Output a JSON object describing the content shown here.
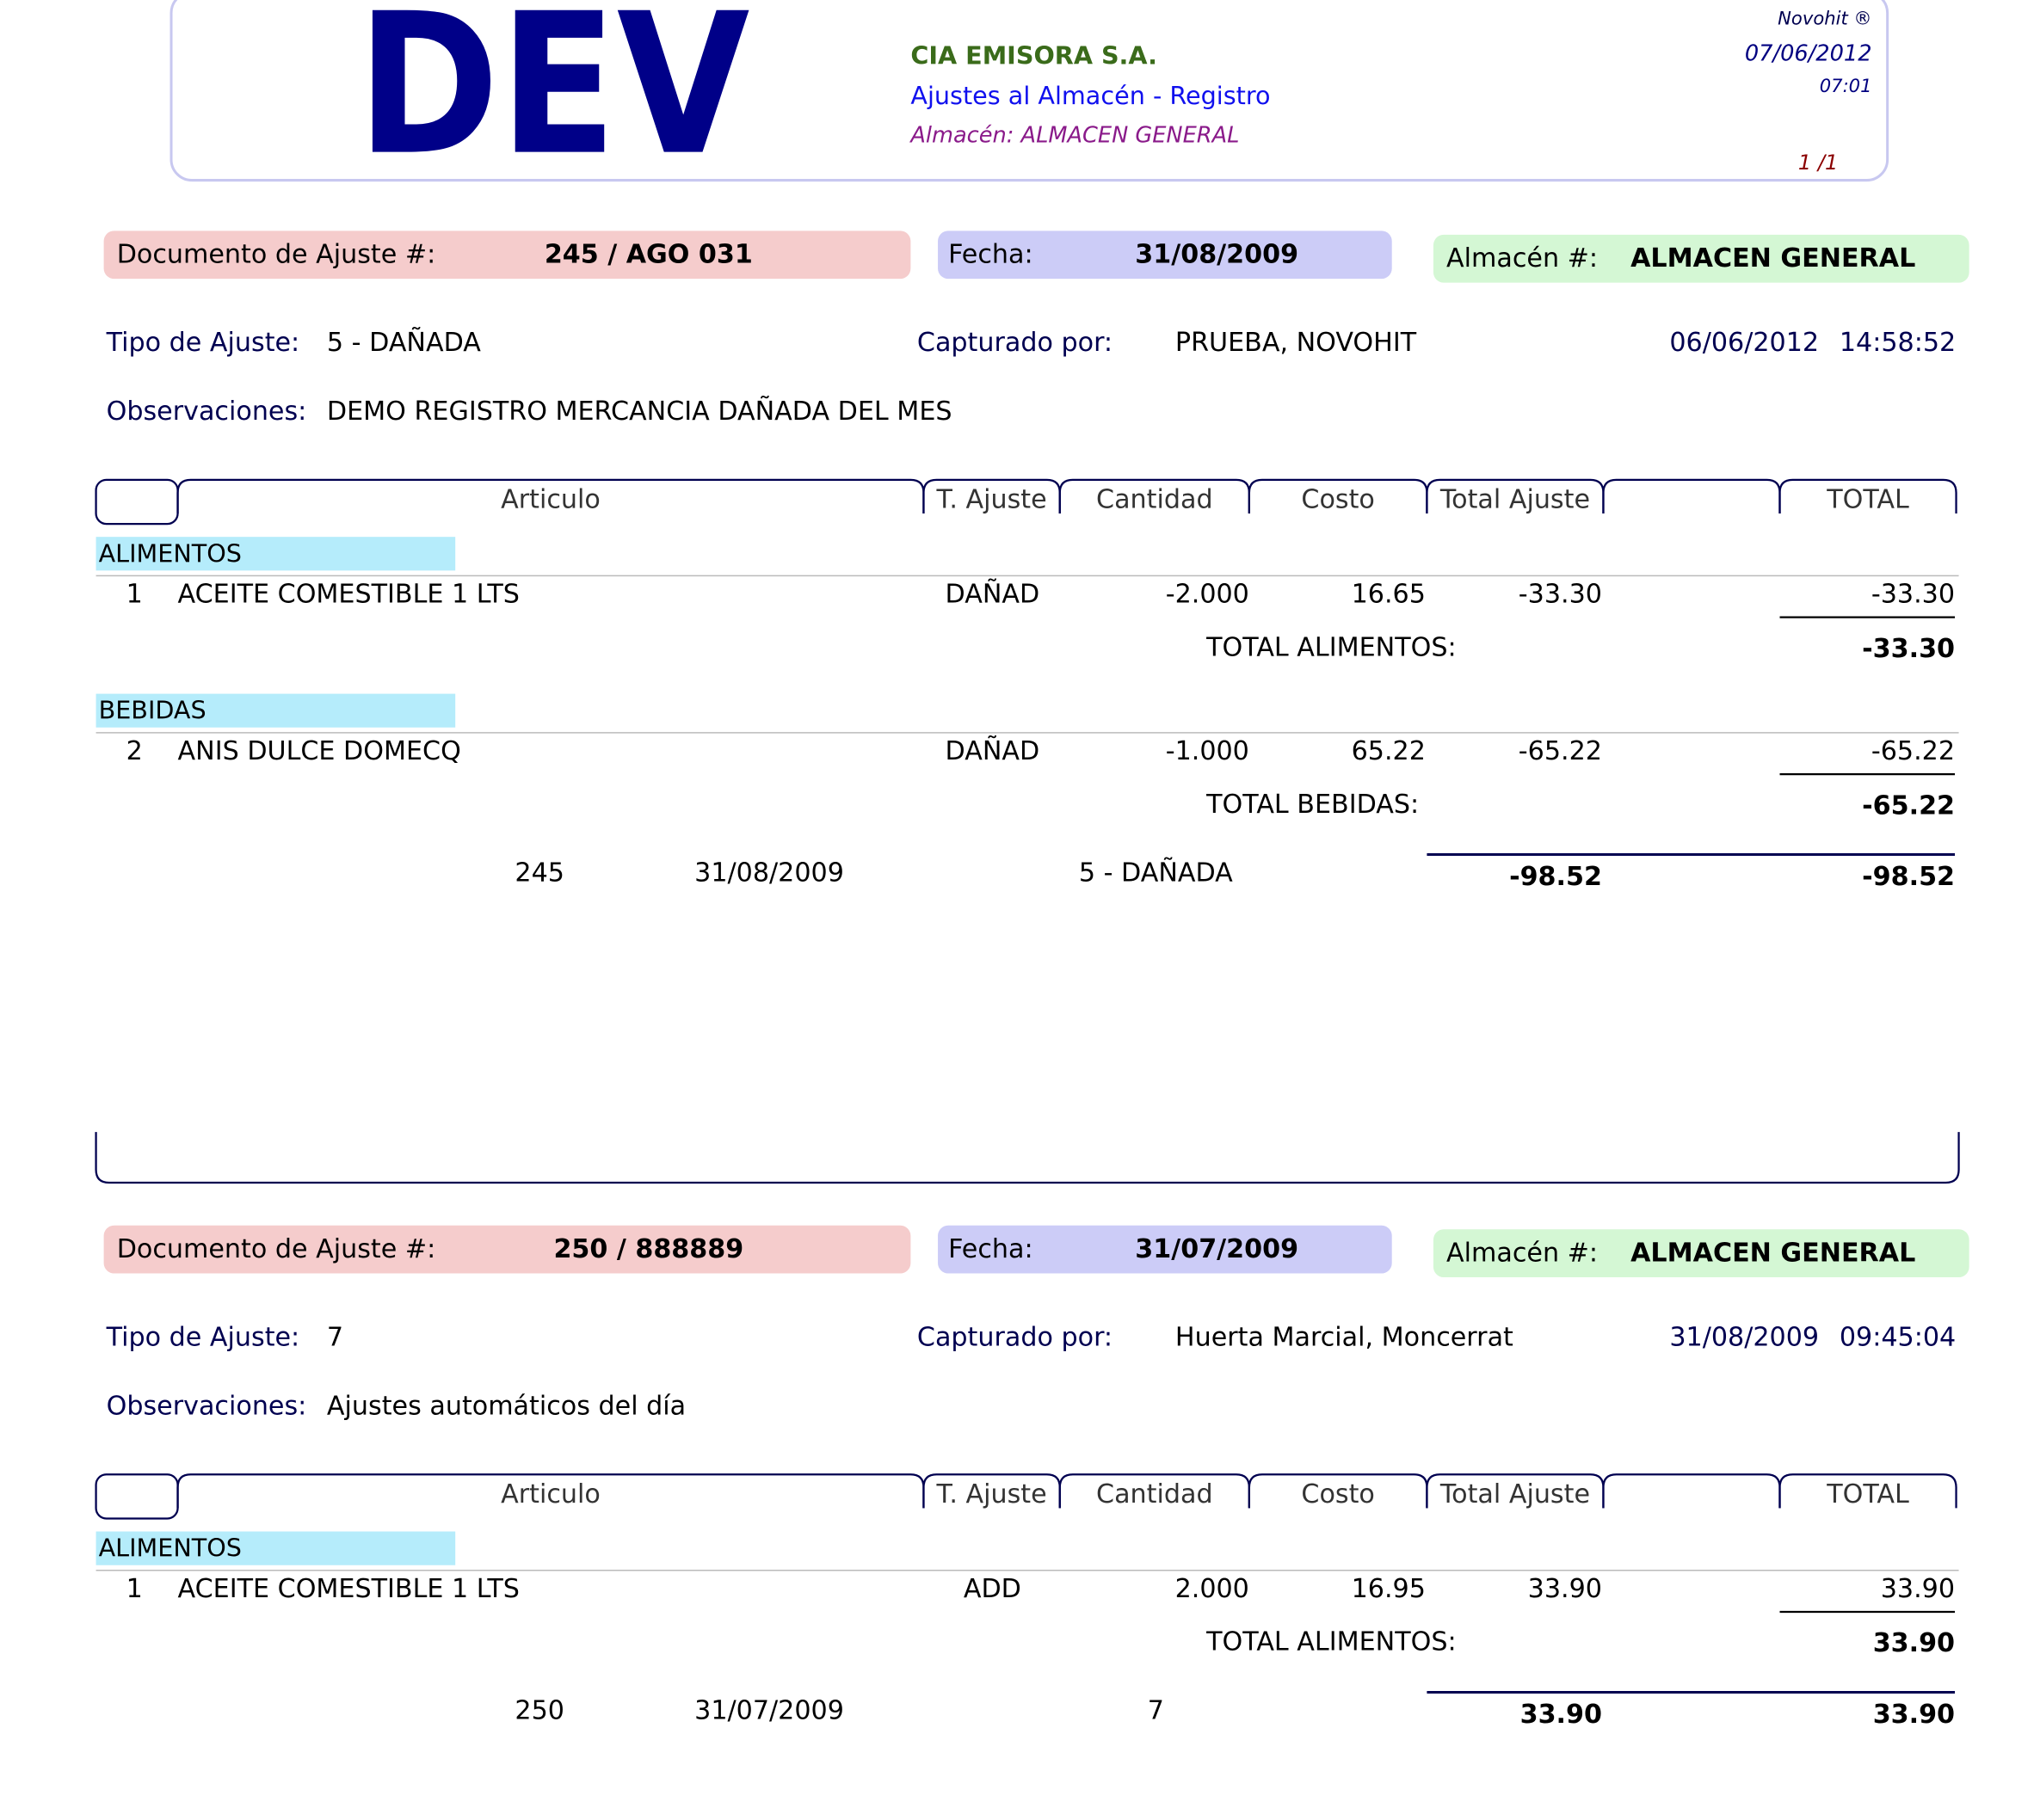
{
  "header": {
    "logo": "DEV",
    "company": "CIA EMISORA S.A.",
    "report": "Ajustes al Almacén - Registro",
    "warehouse": "Almacén: ALMACEN GENERAL",
    "software": "Novohit ®",
    "date": "07/06/2012",
    "time": "07:01",
    "page": "1 /1"
  },
  "documents": [
    {
      "doc_label": "Documento de Ajuste #:",
      "doc_number": "245 / AGO 031",
      "fecha_label": "Fecha:",
      "fecha": "31/08/2009",
      "almacen_label": "Almacén #:",
      "almacen": "ALMACEN GENERAL",
      "tipo_label": "Tipo de Ajuste:",
      "tipo": "5 - DAÑADA",
      "capturado_label": "Capturado por:",
      "capturado": "PRUEBA, NOVOHIT",
      "captura_date": "06/06/2012",
      "captura_time": "14:58:52",
      "obs_label": "Observaciones:",
      "obs": "DEMO REGISTRO MERCANCIA DAÑADA DEL MES",
      "columns": [
        "Articulo",
        "T. Ajuste",
        "Cantidad",
        "Costo",
        "Total Ajuste",
        "TOTAL"
      ],
      "groups": [
        {
          "name": "ALIMENTOS",
          "items": [
            {
              "num": "1",
              "article": "ACEITE COMESTIBLE 1 LTS",
              "type": "DAÑAD",
              "qty": "-2.000",
              "cost": "16.65",
              "total_adj": "-33.30",
              "total": "-33.30"
            }
          ],
          "total_label": "TOTAL ALIMENTOS:",
          "total": "-33.30"
        },
        {
          "name": "BEBIDAS",
          "items": [
            {
              "num": "2",
              "article": "ANIS DULCE DOMECQ",
              "type": "DAÑAD",
              "qty": "-1.000",
              "cost": "65.22",
              "total_adj": "-65.22",
              "total": "-65.22"
            }
          ],
          "total_label": "TOTAL BEBIDAS:",
          "total": "-65.22"
        }
      ],
      "summary": {
        "number": "245",
        "date": "31/08/2009",
        "tipo": "5 - DAÑADA",
        "total_adj": "-98.52",
        "total": "-98.52"
      }
    },
    {
      "doc_label": "Documento de Ajuste #:",
      "doc_number": "250 / 888889",
      "fecha_label": "Fecha:",
      "fecha": "31/07/2009",
      "almacen_label": "Almacén #:",
      "almacen": "ALMACEN GENERAL",
      "tipo_label": "Tipo de Ajuste:",
      "tipo": "7",
      "capturado_label": "Capturado por:",
      "capturado": "Huerta Marcial, Moncerrat",
      "captura_date": "31/08/2009",
      "captura_time": "09:45:04",
      "obs_label": "Observaciones:",
      "obs": "Ajustes automáticos del día",
      "columns": [
        "Articulo",
        "T. Ajuste",
        "Cantidad",
        "Costo",
        "Total Ajuste",
        "TOTAL"
      ],
      "groups": [
        {
          "name": "ALIMENTOS",
          "items": [
            {
              "num": "1",
              "article": "ACEITE COMESTIBLE 1 LTS",
              "type": "ADD",
              "qty": "2.000",
              "cost": "16.95",
              "total_adj": "33.90",
              "total": "33.90"
            }
          ],
          "total_label": "TOTAL ALIMENTOS:",
          "total": "33.90"
        }
      ],
      "summary": {
        "number": "250",
        "date": "31/07/2009",
        "tipo": "7",
        "total_adj": "33.90",
        "total": "33.90"
      }
    }
  ]
}
